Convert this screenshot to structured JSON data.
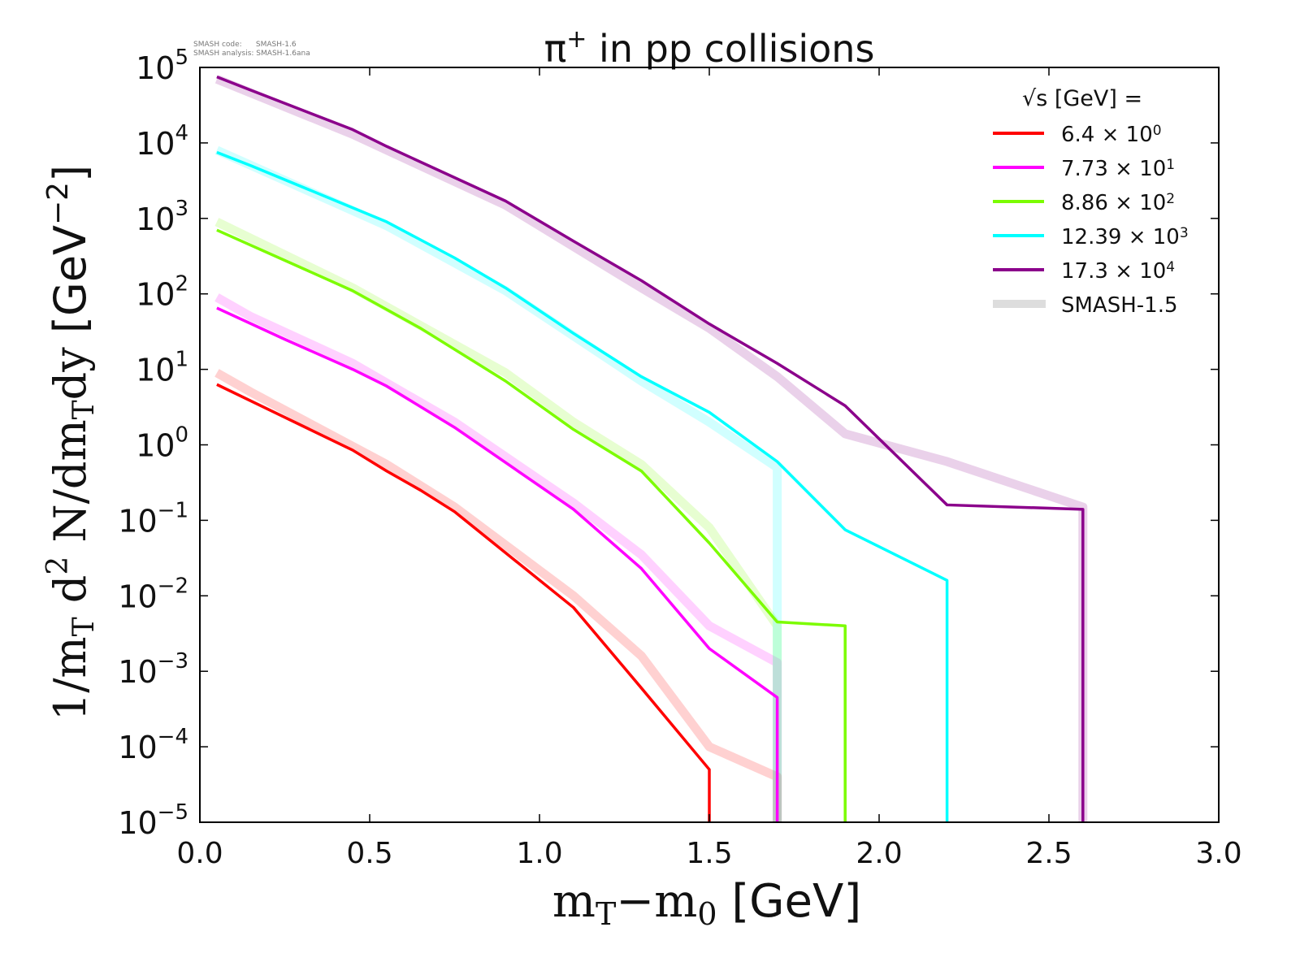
{
  "chart_data": {
    "type": "line",
    "title": "π⁺ in pp collisions",
    "title_base": "π",
    "title_sup": "+",
    "title_rest": " in pp collisions",
    "annotation": [
      "SMASH code:      SMASH-1.6",
      "SMASH analysis: SMASH-1.6ana"
    ],
    "xlabel": "mT−m0 [GeV]",
    "ylabel": "1/mT d² N/dmTdy [GeV⁻²]",
    "xlim": [
      0,
      3
    ],
    "ylim": [
      1e-05,
      100000.0
    ],
    "yscale": "log",
    "xticks": [
      "0.0",
      "0.5",
      "1.0",
      "1.5",
      "2.0",
      "2.5",
      "3.0"
    ],
    "yticks_exp": [
      "5",
      "4",
      "3",
      "2",
      "1",
      "0",
      "−1",
      "−2",
      "−3",
      "−4",
      "−5"
    ],
    "legend_title": "√s [GeV] =",
    "legend_position": "top-right",
    "series": [
      {
        "name": "6.4",
        "mult": "× 10",
        "exp": "0",
        "color": "#ff0000",
        "points": [
          [
            0.05,
            6.3
          ],
          [
            0.45,
            0.85
          ],
          [
            0.55,
            0.45
          ],
          [
            0.65,
            0.25
          ],
          [
            0.75,
            0.13
          ],
          [
            1.1,
            0.007
          ],
          [
            1.3,
            0.0006
          ],
          [
            1.5,
            5e-05
          ],
          [
            1.5,
            1e-05
          ]
        ],
        "ref": [
          [
            0.05,
            9
          ],
          [
            0.15,
            5
          ],
          [
            0.55,
            0.55
          ],
          [
            0.75,
            0.15
          ],
          [
            1.1,
            0.01
          ],
          [
            1.3,
            0.0016
          ],
          [
            1.5,
            0.0001
          ],
          [
            1.7,
            4e-05
          ],
          [
            1.7,
            1e-05
          ]
        ]
      },
      {
        "name": "7.73",
        "mult": "× 10",
        "exp": "1",
        "color": "#ff00ff",
        "points": [
          [
            0.05,
            65
          ],
          [
            0.25,
            25
          ],
          [
            0.45,
            10
          ],
          [
            0.55,
            6
          ],
          [
            0.75,
            1.7
          ],
          [
            1.1,
            0.14
          ],
          [
            1.3,
            0.023
          ],
          [
            1.5,
            0.002
          ],
          [
            1.7,
            0.00045
          ],
          [
            1.7,
            1e-05
          ]
        ],
        "ref": [
          [
            0.05,
            90
          ],
          [
            0.15,
            50
          ],
          [
            0.45,
            12
          ],
          [
            0.75,
            2
          ],
          [
            1.1,
            0.17
          ],
          [
            1.3,
            0.035
          ],
          [
            1.5,
            0.004
          ],
          [
            1.7,
            0.0013
          ],
          [
            1.7,
            1e-05
          ]
        ]
      },
      {
        "name": "8.86",
        "mult": "× 10",
        "exp": "2",
        "color": "#7cfc00",
        "points": [
          [
            0.05,
            700
          ],
          [
            0.45,
            110
          ],
          [
            0.65,
            35
          ],
          [
            0.9,
            7
          ],
          [
            1.1,
            1.6
          ],
          [
            1.3,
            0.45
          ],
          [
            1.5,
            0.05
          ],
          [
            1.7,
            0.0045
          ],
          [
            1.9,
            0.004
          ],
          [
            1.9,
            1e-05
          ]
        ],
        "ref": [
          [
            0.05,
            900
          ],
          [
            0.45,
            120
          ],
          [
            0.9,
            9
          ],
          [
            1.1,
            2
          ],
          [
            1.3,
            0.55
          ],
          [
            1.5,
            0.08
          ],
          [
            1.7,
            0.004
          ],
          [
            1.7,
            1e-05
          ]
        ]
      },
      {
        "name": "12.39",
        "mult": "× 10",
        "exp": "3",
        "color": "#00ffff",
        "points": [
          [
            0.05,
            7500
          ],
          [
            0.15,
            5000
          ],
          [
            0.55,
            900
          ],
          [
            0.75,
            300
          ],
          [
            0.9,
            120
          ],
          [
            1.1,
            30
          ],
          [
            1.3,
            8
          ],
          [
            1.5,
            2.7
          ],
          [
            1.7,
            0.6
          ],
          [
            1.9,
            0.075
          ],
          [
            2.2,
            0.016
          ],
          [
            2.2,
            1e-05
          ]
        ],
        "ref": [
          [
            0.05,
            8000
          ],
          [
            0.55,
            800
          ],
          [
            0.9,
            110
          ],
          [
            1.3,
            7
          ],
          [
            1.5,
            2
          ],
          [
            1.7,
            0.5
          ],
          [
            1.7,
            1e-05
          ]
        ]
      },
      {
        "name": "17.3",
        "mult": "× 10",
        "exp": "4",
        "color": "#8b008b",
        "points": [
          [
            0.05,
            75000
          ],
          [
            0.15,
            50000
          ],
          [
            0.45,
            15000
          ],
          [
            0.55,
            9000
          ],
          [
            0.9,
            1700
          ],
          [
            1.1,
            500
          ],
          [
            1.3,
            150
          ],
          [
            1.5,
            40
          ],
          [
            1.7,
            12
          ],
          [
            1.9,
            3.3
          ],
          [
            2.2,
            0.16
          ],
          [
            2.6,
            0.14
          ],
          [
            2.6,
            1e-05
          ]
        ],
        "ref": [
          [
            0.05,
            70000
          ],
          [
            0.45,
            13000
          ],
          [
            0.9,
            1500
          ],
          [
            1.3,
            120
          ],
          [
            1.5,
            35
          ],
          [
            1.7,
            8
          ],
          [
            1.9,
            1.4
          ],
          [
            2.2,
            0.6
          ],
          [
            2.6,
            0.15
          ],
          [
            2.6,
            1e-05
          ]
        ]
      }
    ],
    "ref_label": "SMASH-1.5",
    "ref_color": "#dddddd"
  }
}
